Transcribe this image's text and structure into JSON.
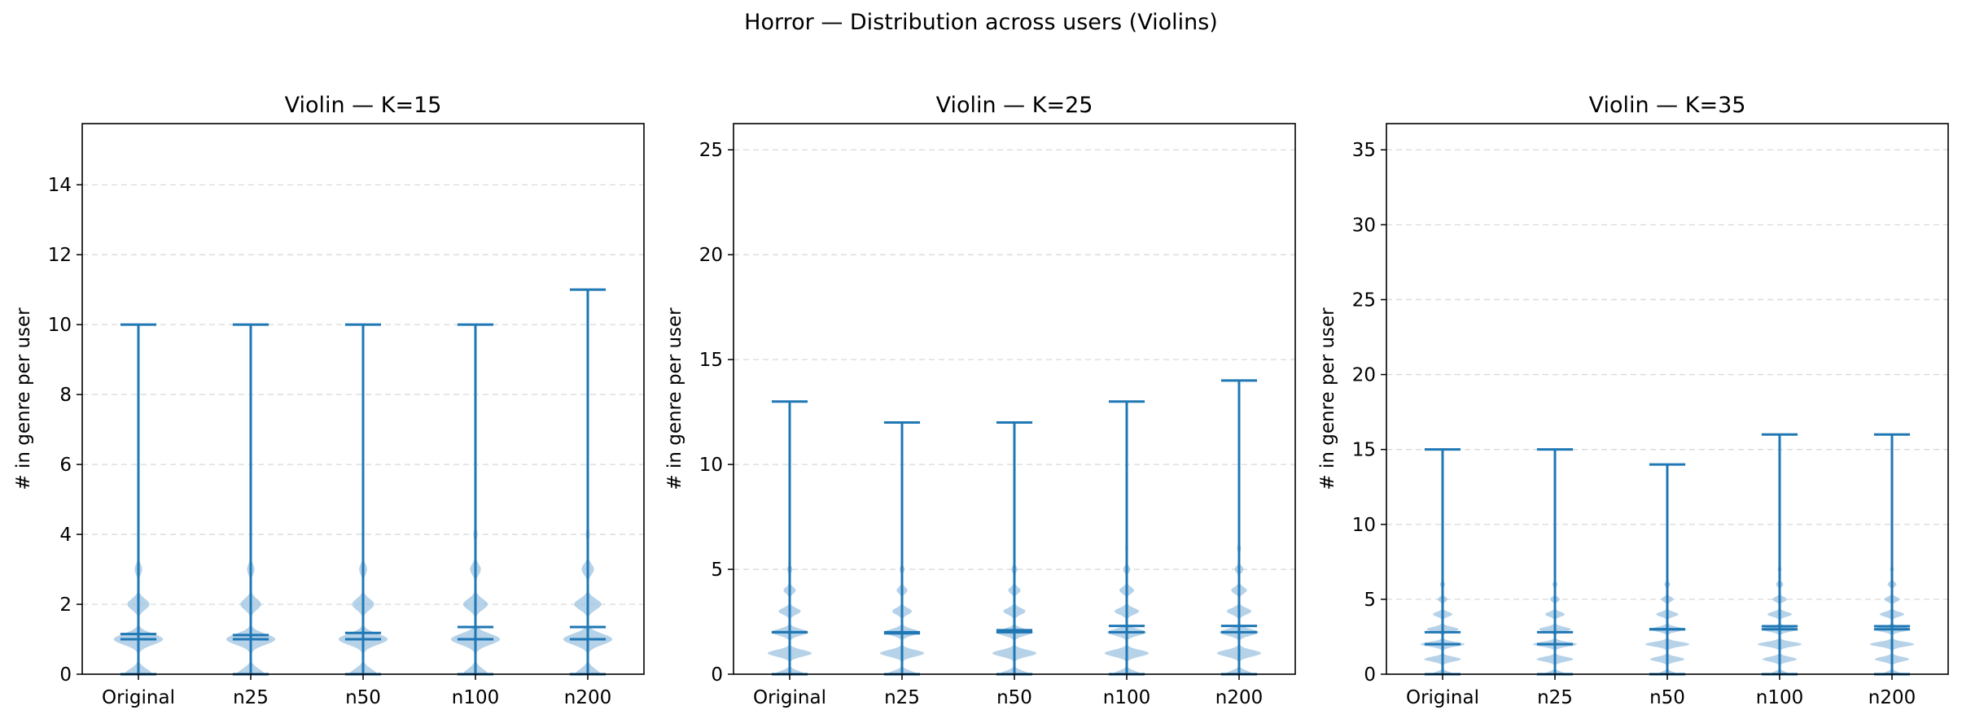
{
  "figure_title": "Horror — Distribution across users (Violins)",
  "colors": {
    "body": "#9ec3e0",
    "line": "#1f77b4",
    "grid": "#d9d9d9"
  },
  "chart_data": [
    {
      "type": "violin",
      "title": "Violin — K=15",
      "ylabel": "# in genre per user",
      "categories": [
        "Original",
        "n25",
        "n50",
        "n100",
        "n200"
      ],
      "ylim": [
        0,
        15.75
      ],
      "yticks": [
        0,
        2,
        4,
        6,
        8,
        10,
        12,
        14
      ],
      "grid": true,
      "series": [
        {
          "category": "Original",
          "min": 0,
          "max": 10,
          "mean": 1.15,
          "median": 1.0,
          "density": [
            {
              "y": 0,
              "w": 0.55
            },
            {
              "y": 1,
              "w": 1.0
            },
            {
              "y": 2,
              "w": 0.45
            },
            {
              "y": 3,
              "w": 0.15
            },
            {
              "y": 4,
              "w": 0.05
            },
            {
              "y": 5,
              "w": 0.02
            }
          ]
        },
        {
          "category": "n25",
          "min": 0,
          "max": 10,
          "mean": 1.12,
          "median": 1.0,
          "density": [
            {
              "y": 0,
              "w": 0.55
            },
            {
              "y": 1,
              "w": 1.0
            },
            {
              "y": 2,
              "w": 0.42
            },
            {
              "y": 3,
              "w": 0.15
            },
            {
              "y": 4,
              "w": 0.05
            },
            {
              "y": 5,
              "w": 0.02
            }
          ]
        },
        {
          "category": "n50",
          "min": 0,
          "max": 10,
          "mean": 1.18,
          "median": 1.0,
          "density": [
            {
              "y": 0,
              "w": 0.55
            },
            {
              "y": 1,
              "w": 1.0
            },
            {
              "y": 2,
              "w": 0.45
            },
            {
              "y": 3,
              "w": 0.16
            },
            {
              "y": 4,
              "w": 0.06
            },
            {
              "y": 5,
              "w": 0.02
            }
          ]
        },
        {
          "category": "n100",
          "min": 0,
          "max": 10,
          "mean": 1.35,
          "median": 1.0,
          "density": [
            {
              "y": 0,
              "w": 0.5
            },
            {
              "y": 1,
              "w": 1.0
            },
            {
              "y": 2,
              "w": 0.5
            },
            {
              "y": 3,
              "w": 0.22
            },
            {
              "y": 4,
              "w": 0.08
            },
            {
              "y": 5,
              "w": 0.03
            }
          ]
        },
        {
          "category": "n200",
          "min": 0,
          "max": 11,
          "mean": 1.35,
          "median": 1.0,
          "density": [
            {
              "y": 0,
              "w": 0.5
            },
            {
              "y": 1,
              "w": 1.0
            },
            {
              "y": 2,
              "w": 0.55
            },
            {
              "y": 3,
              "w": 0.25
            },
            {
              "y": 4,
              "w": 0.08
            },
            {
              "y": 5,
              "w": 0.03
            }
          ]
        }
      ]
    },
    {
      "type": "violin",
      "title": "Violin — K=25",
      "ylabel": "# in genre per user",
      "categories": [
        "Original",
        "n25",
        "n50",
        "n100",
        "n200"
      ],
      "ylim": [
        0,
        26.25
      ],
      "yticks": [
        0,
        5,
        10,
        15,
        20,
        25
      ],
      "grid": true,
      "series": [
        {
          "category": "Original",
          "min": 0,
          "max": 13,
          "mean": 2.0,
          "median": 2.0,
          "density": [
            {
              "y": 0,
              "w": 0.6
            },
            {
              "y": 1,
              "w": 0.9
            },
            {
              "y": 2,
              "w": 0.75
            },
            {
              "y": 3,
              "w": 0.45
            },
            {
              "y": 4,
              "w": 0.25
            },
            {
              "y": 5,
              "w": 0.1
            },
            {
              "y": 6,
              "w": 0.04
            }
          ]
        },
        {
          "category": "n25",
          "min": 0,
          "max": 12,
          "mean": 1.95,
          "median": 2.0,
          "density": [
            {
              "y": 0,
              "w": 0.6
            },
            {
              "y": 1,
              "w": 0.9
            },
            {
              "y": 2,
              "w": 0.7
            },
            {
              "y": 3,
              "w": 0.4
            },
            {
              "y": 4,
              "w": 0.22
            },
            {
              "y": 5,
              "w": 0.1
            },
            {
              "y": 6,
              "w": 0.04
            }
          ]
        },
        {
          "category": "n50",
          "min": 0,
          "max": 12,
          "mean": 2.1,
          "median": 2.0,
          "density": [
            {
              "y": 0,
              "w": 0.6
            },
            {
              "y": 1,
              "w": 0.9
            },
            {
              "y": 2,
              "w": 0.75
            },
            {
              "y": 3,
              "w": 0.45
            },
            {
              "y": 4,
              "w": 0.25
            },
            {
              "y": 5,
              "w": 0.12
            },
            {
              "y": 6,
              "w": 0.05
            }
          ]
        },
        {
          "category": "n100",
          "min": 0,
          "max": 13,
          "mean": 2.3,
          "median": 2.0,
          "density": [
            {
              "y": 0,
              "w": 0.55
            },
            {
              "y": 1,
              "w": 0.9
            },
            {
              "y": 2,
              "w": 0.8
            },
            {
              "y": 3,
              "w": 0.5
            },
            {
              "y": 4,
              "w": 0.3
            },
            {
              "y": 5,
              "w": 0.15
            },
            {
              "y": 6,
              "w": 0.06
            }
          ]
        },
        {
          "category": "n200",
          "min": 0,
          "max": 14,
          "mean": 2.3,
          "median": 2.0,
          "density": [
            {
              "y": 0,
              "w": 0.55
            },
            {
              "y": 1,
              "w": 0.9
            },
            {
              "y": 2,
              "w": 0.8
            },
            {
              "y": 3,
              "w": 0.5
            },
            {
              "y": 4,
              "w": 0.32
            },
            {
              "y": 5,
              "w": 0.18
            },
            {
              "y": 6,
              "w": 0.08
            }
          ]
        }
      ]
    },
    {
      "type": "violin",
      "title": "Violin — K=35",
      "ylabel": "# in genre per user",
      "categories": [
        "Original",
        "n25",
        "n50",
        "n100",
        "n200"
      ],
      "ylim": [
        0,
        36.75
      ],
      "yticks": [
        0,
        5,
        10,
        15,
        20,
        25,
        30,
        35
      ],
      "grid": true,
      "series": [
        {
          "category": "Original",
          "min": 0,
          "max": 15,
          "mean": 2.8,
          "median": 2.0,
          "density": [
            {
              "y": 0,
              "w": 0.45
            },
            {
              "y": 1,
              "w": 0.75
            },
            {
              "y": 2,
              "w": 0.9
            },
            {
              "y": 3,
              "w": 0.65
            },
            {
              "y": 4,
              "w": 0.4
            },
            {
              "y": 5,
              "w": 0.2
            },
            {
              "y": 6,
              "w": 0.1
            },
            {
              "y": 7,
              "w": 0.04
            }
          ]
        },
        {
          "category": "n25",
          "min": 0,
          "max": 15,
          "mean": 2.8,
          "median": 2.0,
          "density": [
            {
              "y": 0,
              "w": 0.45
            },
            {
              "y": 1,
              "w": 0.75
            },
            {
              "y": 2,
              "w": 0.9
            },
            {
              "y": 3,
              "w": 0.65
            },
            {
              "y": 4,
              "w": 0.4
            },
            {
              "y": 5,
              "w": 0.2
            },
            {
              "y": 6,
              "w": 0.1
            },
            {
              "y": 7,
              "w": 0.04
            }
          ]
        },
        {
          "category": "n50",
          "min": 0,
          "max": 14,
          "mean": 3.0,
          "median": 3.0,
          "density": [
            {
              "y": 0,
              "w": 0.4
            },
            {
              "y": 1,
              "w": 0.7
            },
            {
              "y": 2,
              "w": 0.9
            },
            {
              "y": 3,
              "w": 0.7
            },
            {
              "y": 4,
              "w": 0.45
            },
            {
              "y": 5,
              "w": 0.25
            },
            {
              "y": 6,
              "w": 0.12
            },
            {
              "y": 7,
              "w": 0.05
            }
          ]
        },
        {
          "category": "n100",
          "min": 0,
          "max": 16,
          "mean": 3.2,
          "median": 3.0,
          "density": [
            {
              "y": 0,
              "w": 0.4
            },
            {
              "y": 1,
              "w": 0.7
            },
            {
              "y": 2,
              "w": 0.9
            },
            {
              "y": 3,
              "w": 0.75
            },
            {
              "y": 4,
              "w": 0.5
            },
            {
              "y": 5,
              "w": 0.3
            },
            {
              "y": 6,
              "w": 0.15
            },
            {
              "y": 7,
              "w": 0.08
            },
            {
              "y": 8,
              "w": 0.03
            }
          ]
        },
        {
          "category": "n200",
          "min": 0,
          "max": 16,
          "mean": 3.2,
          "median": 3.0,
          "density": [
            {
              "y": 0,
              "w": 0.4
            },
            {
              "y": 1,
              "w": 0.7
            },
            {
              "y": 2,
              "w": 0.9
            },
            {
              "y": 3,
              "w": 0.75
            },
            {
              "y": 4,
              "w": 0.5
            },
            {
              "y": 5,
              "w": 0.32
            },
            {
              "y": 6,
              "w": 0.18
            },
            {
              "y": 7,
              "w": 0.08
            },
            {
              "y": 8,
              "w": 0.04
            }
          ]
        }
      ]
    }
  ]
}
